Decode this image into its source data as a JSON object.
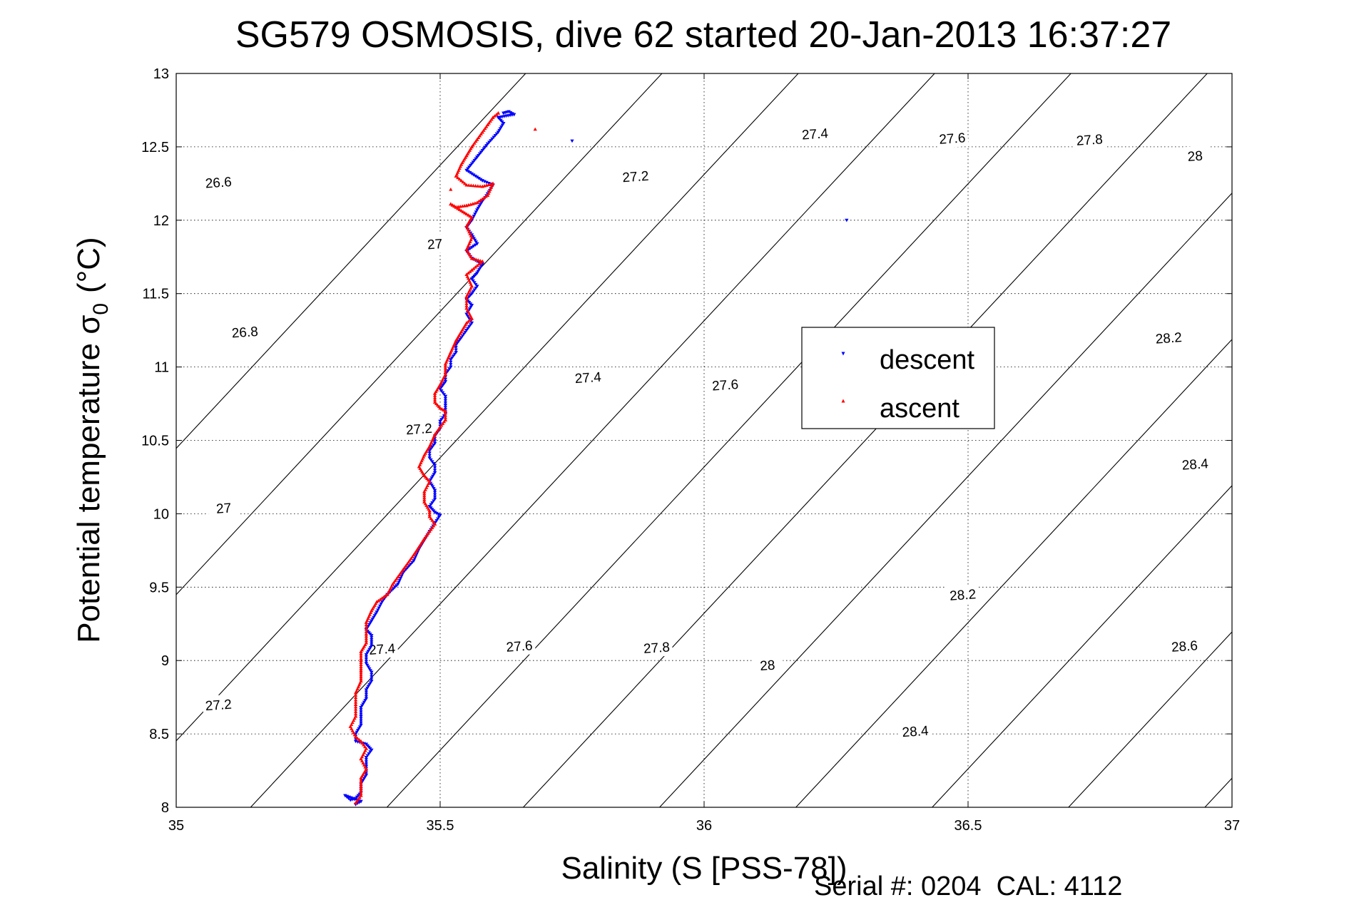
{
  "chart_data": {
    "type": "scatter",
    "title": "SG579 OSMOSIS, dive 62 started 20-Jan-2013 16:37:27",
    "xlabel": "Salinity (S [PSS-78])",
    "ylabel_main": "Potential temperature σ",
    "ylabel_sub": "0",
    "ylabel_unit": "(°C)",
    "footer": "Serial #: 0204  CAL: 4112",
    "xlim": [
      35,
      37
    ],
    "ylim": [
      8,
      13
    ],
    "xticks": [
      "35",
      "35.5",
      "36",
      "36.5",
      "37"
    ],
    "yticks": [
      "8",
      "8.5",
      "9",
      "9.5",
      "10",
      "10.5",
      "11",
      "11.5",
      "12",
      "12.5",
      "13"
    ],
    "grid": true,
    "legend_position": "center-right",
    "contour_levels": [
      26.6,
      26.8,
      27.0,
      27.2,
      27.4,
      27.6,
      27.8,
      28.0,
      28.2,
      28.4,
      28.6,
      28.8,
      29.0,
      29.2
    ],
    "contour_labels": [
      {
        "text": "26.6",
        "s": 35.08,
        "t": 12.26
      },
      {
        "text": "26.8",
        "s": 35.13,
        "t": 11.24
      },
      {
        "text": "27",
        "s": 35.09,
        "t": 10.04
      },
      {
        "text": "27",
        "s": 35.49,
        "t": 11.84
      },
      {
        "text": "27.2",
        "s": 35.08,
        "t": 8.7
      },
      {
        "text": "27.2",
        "s": 35.46,
        "t": 10.58
      },
      {
        "text": "27.2",
        "s": 35.87,
        "t": 12.3
      },
      {
        "text": "27.4",
        "s": 35.39,
        "t": 9.08
      },
      {
        "text": "27.4",
        "s": 35.78,
        "t": 10.93
      },
      {
        "text": "27.4",
        "s": 36.21,
        "t": 12.59
      },
      {
        "text": "27.6",
        "s": 35.65,
        "t": 9.1
      },
      {
        "text": "27.6",
        "s": 36.04,
        "t": 10.88
      },
      {
        "text": "27.6",
        "s": 36.47,
        "t": 12.56
      },
      {
        "text": "27.8",
        "s": 35.91,
        "t": 9.09
      },
      {
        "text": "27.8",
        "s": 36.73,
        "t": 12.55
      },
      {
        "text": "28",
        "s": 36.12,
        "t": 8.97
      },
      {
        "text": "28",
        "s": 36.93,
        "t": 12.44
      },
      {
        "text": "28.2",
        "s": 36.49,
        "t": 9.45
      },
      {
        "text": "28.2",
        "s": 36.88,
        "t": 11.2
      },
      {
        "text": "28.4",
        "s": 36.4,
        "t": 8.52
      },
      {
        "text": "28.4",
        "s": 36.93,
        "t": 10.34
      },
      {
        "text": "28.6",
        "s": 36.91,
        "t": 9.1
      }
    ],
    "series": [
      {
        "name": "descent",
        "color": "#0000ff",
        "marker": "triangle-down",
        "points": [
          [
            35.62,
            12.73
          ],
          [
            35.63,
            12.74
          ],
          [
            35.64,
            12.72
          ],
          [
            35.61,
            12.7
          ],
          [
            35.62,
            12.66
          ],
          [
            35.61,
            12.6
          ],
          [
            35.59,
            12.52
          ],
          [
            35.57,
            12.43
          ],
          [
            35.55,
            12.34
          ],
          [
            35.58,
            12.27
          ],
          [
            35.6,
            12.24
          ],
          [
            35.59,
            12.18
          ],
          [
            35.58,
            12.13
          ],
          [
            35.57,
            12.07
          ],
          [
            35.56,
            12.0
          ],
          [
            35.55,
            11.95
          ],
          [
            35.56,
            11.9
          ],
          [
            35.57,
            11.84
          ],
          [
            35.55,
            11.79
          ],
          [
            35.56,
            11.74
          ],
          [
            35.58,
            11.7
          ],
          [
            35.57,
            11.64
          ],
          [
            35.56,
            11.6
          ],
          [
            35.57,
            11.55
          ],
          [
            35.56,
            11.5
          ],
          [
            35.55,
            11.46
          ],
          [
            35.56,
            11.42
          ],
          [
            35.55,
            11.36
          ],
          [
            35.56,
            11.3
          ],
          [
            35.55,
            11.25
          ],
          [
            35.54,
            11.2
          ],
          [
            35.53,
            11.15
          ],
          [
            35.53,
            11.1
          ],
          [
            35.52,
            11.05
          ],
          [
            35.52,
            11.0
          ],
          [
            35.51,
            10.95
          ],
          [
            35.51,
            10.9
          ],
          [
            35.5,
            10.85
          ],
          [
            35.51,
            10.8
          ],
          [
            35.51,
            10.74
          ],
          [
            35.51,
            10.68
          ],
          [
            35.5,
            10.63
          ],
          [
            35.5,
            10.58
          ],
          [
            35.49,
            10.53
          ],
          [
            35.49,
            10.48
          ],
          [
            35.48,
            10.43
          ],
          [
            35.48,
            10.38
          ],
          [
            35.49,
            10.33
          ],
          [
            35.49,
            10.28
          ],
          [
            35.48,
            10.22
          ],
          [
            35.49,
            10.16
          ],
          [
            35.49,
            10.1
          ],
          [
            35.48,
            10.05
          ],
          [
            35.49,
            10.01
          ],
          [
            35.5,
            9.99
          ],
          [
            35.48,
            9.88
          ],
          [
            35.46,
            9.76
          ],
          [
            35.45,
            9.68
          ],
          [
            35.43,
            9.6
          ],
          [
            35.42,
            9.52
          ],
          [
            35.4,
            9.45
          ],
          [
            35.39,
            9.4
          ],
          [
            35.38,
            9.33
          ],
          [
            35.37,
            9.27
          ],
          [
            35.36,
            9.21
          ],
          [
            35.37,
            9.17
          ],
          [
            35.37,
            9.1
          ],
          [
            35.36,
            9.04
          ],
          [
            35.36,
            8.98
          ],
          [
            35.37,
            8.92
          ],
          [
            35.37,
            8.86
          ],
          [
            35.36,
            8.8
          ],
          [
            35.36,
            8.74
          ],
          [
            35.35,
            8.68
          ],
          [
            35.35,
            8.62
          ],
          [
            35.35,
            8.56
          ],
          [
            35.34,
            8.5
          ],
          [
            35.34,
            8.45
          ],
          [
            35.36,
            8.43
          ],
          [
            35.37,
            8.39
          ],
          [
            35.36,
            8.34
          ],
          [
            35.36,
            8.28
          ],
          [
            35.36,
            8.22
          ],
          [
            35.35,
            8.16
          ],
          [
            35.35,
            8.1
          ],
          [
            35.34,
            8.06
          ],
          [
            35.33,
            8.05
          ],
          [
            35.32,
            8.08
          ],
          [
            35.35,
            8.04
          ],
          [
            35.34,
            8.02
          ],
          [
            35.75,
            12.54
          ],
          [
            36.27,
            12.0
          ]
        ]
      },
      {
        "name": "ascent",
        "color": "#ff0000",
        "marker": "triangle-up",
        "points": [
          [
            35.61,
            12.73
          ],
          [
            35.6,
            12.7
          ],
          [
            35.59,
            12.65
          ],
          [
            35.58,
            12.6
          ],
          [
            35.57,
            12.55
          ],
          [
            35.56,
            12.5
          ],
          [
            35.55,
            12.44
          ],
          [
            35.54,
            12.38
          ],
          [
            35.53,
            12.3
          ],
          [
            35.55,
            12.24
          ],
          [
            35.58,
            12.23
          ],
          [
            35.6,
            12.25
          ],
          [
            35.59,
            12.17
          ],
          [
            35.57,
            12.12
          ],
          [
            35.55,
            12.1
          ],
          [
            35.53,
            12.09
          ],
          [
            35.52,
            12.11
          ],
          [
            35.56,
            12.02
          ],
          [
            35.55,
            11.96
          ],
          [
            35.56,
            11.88
          ],
          [
            35.55,
            11.8
          ],
          [
            35.56,
            11.74
          ],
          [
            35.58,
            11.72
          ],
          [
            35.56,
            11.66
          ],
          [
            35.55,
            11.63
          ],
          [
            35.56,
            11.55
          ],
          [
            35.55,
            11.48
          ],
          [
            35.55,
            11.4
          ],
          [
            35.56,
            11.33
          ],
          [
            35.55,
            11.3
          ],
          [
            35.54,
            11.24
          ],
          [
            35.53,
            11.18
          ],
          [
            35.52,
            11.1
          ],
          [
            35.51,
            11.02
          ],
          [
            35.51,
            10.95
          ],
          [
            35.5,
            10.88
          ],
          [
            35.49,
            10.82
          ],
          [
            35.49,
            10.76
          ],
          [
            35.5,
            10.72
          ],
          [
            35.51,
            10.7
          ],
          [
            35.51,
            10.64
          ],
          [
            35.5,
            10.59
          ],
          [
            35.49,
            10.54
          ],
          [
            35.48,
            10.46
          ],
          [
            35.47,
            10.4
          ],
          [
            35.46,
            10.32
          ],
          [
            35.47,
            10.26
          ],
          [
            35.48,
            10.22
          ],
          [
            35.47,
            10.15
          ],
          [
            35.47,
            10.08
          ],
          [
            35.48,
            10.02
          ],
          [
            35.48,
            9.98
          ],
          [
            35.49,
            9.93
          ],
          [
            35.47,
            9.83
          ],
          [
            35.45,
            9.72
          ],
          [
            35.43,
            9.62
          ],
          [
            35.41,
            9.52
          ],
          [
            35.4,
            9.45
          ],
          [
            35.38,
            9.4
          ],
          [
            35.37,
            9.34
          ],
          [
            35.36,
            9.26
          ],
          [
            35.36,
            9.18
          ],
          [
            35.36,
            9.12
          ],
          [
            35.35,
            9.06
          ],
          [
            35.35,
            9.0
          ],
          [
            35.35,
            8.93
          ],
          [
            35.35,
            8.86
          ],
          [
            35.34,
            8.78
          ],
          [
            35.34,
            8.7
          ],
          [
            35.34,
            8.62
          ],
          [
            35.33,
            8.55
          ],
          [
            35.34,
            8.48
          ],
          [
            35.35,
            8.45
          ],
          [
            35.36,
            8.4
          ],
          [
            35.35,
            8.33
          ],
          [
            35.36,
            8.26
          ],
          [
            35.35,
            8.2
          ],
          [
            35.35,
            8.14
          ],
          [
            35.35,
            8.08
          ],
          [
            35.34,
            8.03
          ],
          [
            35.68,
            12.62
          ],
          [
            35.52,
            12.21
          ]
        ]
      }
    ]
  }
}
